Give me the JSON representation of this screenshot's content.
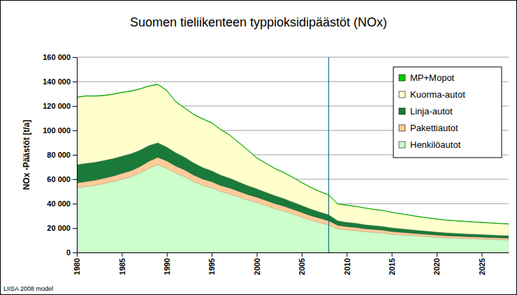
{
  "chart_data": {
    "type": "area",
    "stacked": true,
    "title": "Suomen tieliikenteen typpioksidipäästöt (NOx)",
    "y_label": "NOx -Päästöt [t/a]",
    "source": "LIISA 2008 model",
    "x": [
      1980,
      1981,
      1982,
      1983,
      1984,
      1985,
      1986,
      1987,
      1988,
      1989,
      1990,
      1991,
      1992,
      1993,
      1994,
      1995,
      1996,
      1997,
      1998,
      1999,
      2000,
      2001,
      2002,
      2003,
      2004,
      2005,
      2006,
      2007,
      2008,
      2009,
      2010,
      2011,
      2012,
      2013,
      2014,
      2015,
      2016,
      2017,
      2018,
      2019,
      2020,
      2021,
      2022,
      2023,
      2024,
      2025,
      2026,
      2027,
      2028
    ],
    "xlim": [
      1980,
      2028
    ],
    "xticks": [
      1980,
      1985,
      1990,
      1995,
      2000,
      2005,
      2010,
      2015,
      2020,
      2025
    ],
    "ylim": [
      0,
      160000
    ],
    "yticks": [
      0,
      {
        "value": 20000,
        "label": "20 000"
      },
      {
        "value": 40000,
        "label": "40 000"
      },
      {
        "value": 60000,
        "label": "60 000"
      },
      {
        "value": 80000,
        "label": "80 000"
      },
      {
        "value": 100000,
        "label": "100 000"
      },
      {
        "value": 120000,
        "label": "120 000"
      },
      {
        "value": 140000,
        "label": "140 000"
      },
      {
        "value": 160000,
        "label": "160 000"
      }
    ],
    "grid": true,
    "legend": "upper right",
    "reference_x": 2008,
    "series": [
      {
        "name": "Henkilöautot",
        "color": "#ccffcc",
        "values": [
          53000,
          54000,
          55000,
          56500,
          58000,
          60000,
          62000,
          65000,
          69000,
          72000,
          69000,
          65000,
          62000,
          58000,
          55000,
          53000,
          50000,
          48000,
          45500,
          43000,
          41000,
          38500,
          36000,
          34000,
          31500,
          29000,
          26500,
          24500,
          22500,
          19500,
          18500,
          18000,
          17000,
          16500,
          16000,
          15000,
          14500,
          14000,
          13500,
          13000,
          12500,
          12000,
          11800,
          11500,
          11200,
          11000,
          10700,
          10500,
          10300
        ]
      },
      {
        "name": "Pakettiautot",
        "color": "#ffcc99",
        "values": [
          4000,
          4100,
          4200,
          4400,
          4600,
          4800,
          5000,
          5300,
          5700,
          6000,
          6000,
          5800,
          5600,
          5400,
          5200,
          5000,
          4900,
          4800,
          4600,
          4500,
          4300,
          4200,
          4100,
          4000,
          3900,
          3800,
          3700,
          3600,
          3500,
          2800,
          2700,
          2600,
          2500,
          2400,
          2300,
          2200,
          2100,
          2000,
          1900,
          1850,
          1800,
          1750,
          1700,
          1650,
          1600,
          1600,
          1550,
          1500,
          1500
        ]
      },
      {
        "name": "Linja-autot",
        "color": "#1a7a3a",
        "values": [
          15000,
          15000,
          14800,
          14600,
          14400,
          14200,
          14000,
          13500,
          13000,
          12000,
          11500,
          11000,
          10500,
          10000,
          9500,
          9000,
          8600,
          8200,
          7800,
          7400,
          7000,
          6800,
          6600,
          6300,
          6000,
          5800,
          5500,
          5200,
          5000,
          3800,
          3600,
          3500,
          3400,
          3300,
          3200,
          3100,
          3000,
          2900,
          2800,
          2700,
          2600,
          2500,
          2400,
          2300,
          2300,
          2200,
          2200,
          2100,
          2100
        ]
      },
      {
        "name": "Kuorma-autot",
        "color": "#ffffcc",
        "values": [
          55000,
          55000,
          54000,
          53000,
          52500,
          52000,
          51000,
          50000,
          48500,
          47500,
          46000,
          41500,
          40000,
          39500,
          39500,
          39000,
          37000,
          35000,
          32000,
          29000,
          25000,
          23500,
          22000,
          21000,
          20000,
          18500,
          17500,
          16500,
          16000,
          13500,
          13800,
          13600,
          13400,
          13000,
          12800,
          12500,
          12000,
          11500,
          11000,
          10700,
          10400,
          10200,
          10000,
          9900,
          9800,
          9700,
          9600,
          9500,
          9400
        ]
      },
      {
        "name": "MP+Mopot",
        "color": "#00cc00",
        "values": [
          400,
          400,
          400,
          400,
          400,
          400,
          400,
          400,
          400,
          400,
          400,
          400,
          400,
          400,
          400,
          400,
          350,
          350,
          350,
          350,
          350,
          350,
          350,
          350,
          350,
          350,
          350,
          350,
          350,
          350,
          350,
          300,
          300,
          300,
          300,
          300,
          300,
          300,
          300,
          300,
          300,
          300,
          300,
          300,
          300,
          300,
          300,
          300,
          300
        ]
      }
    ]
  }
}
